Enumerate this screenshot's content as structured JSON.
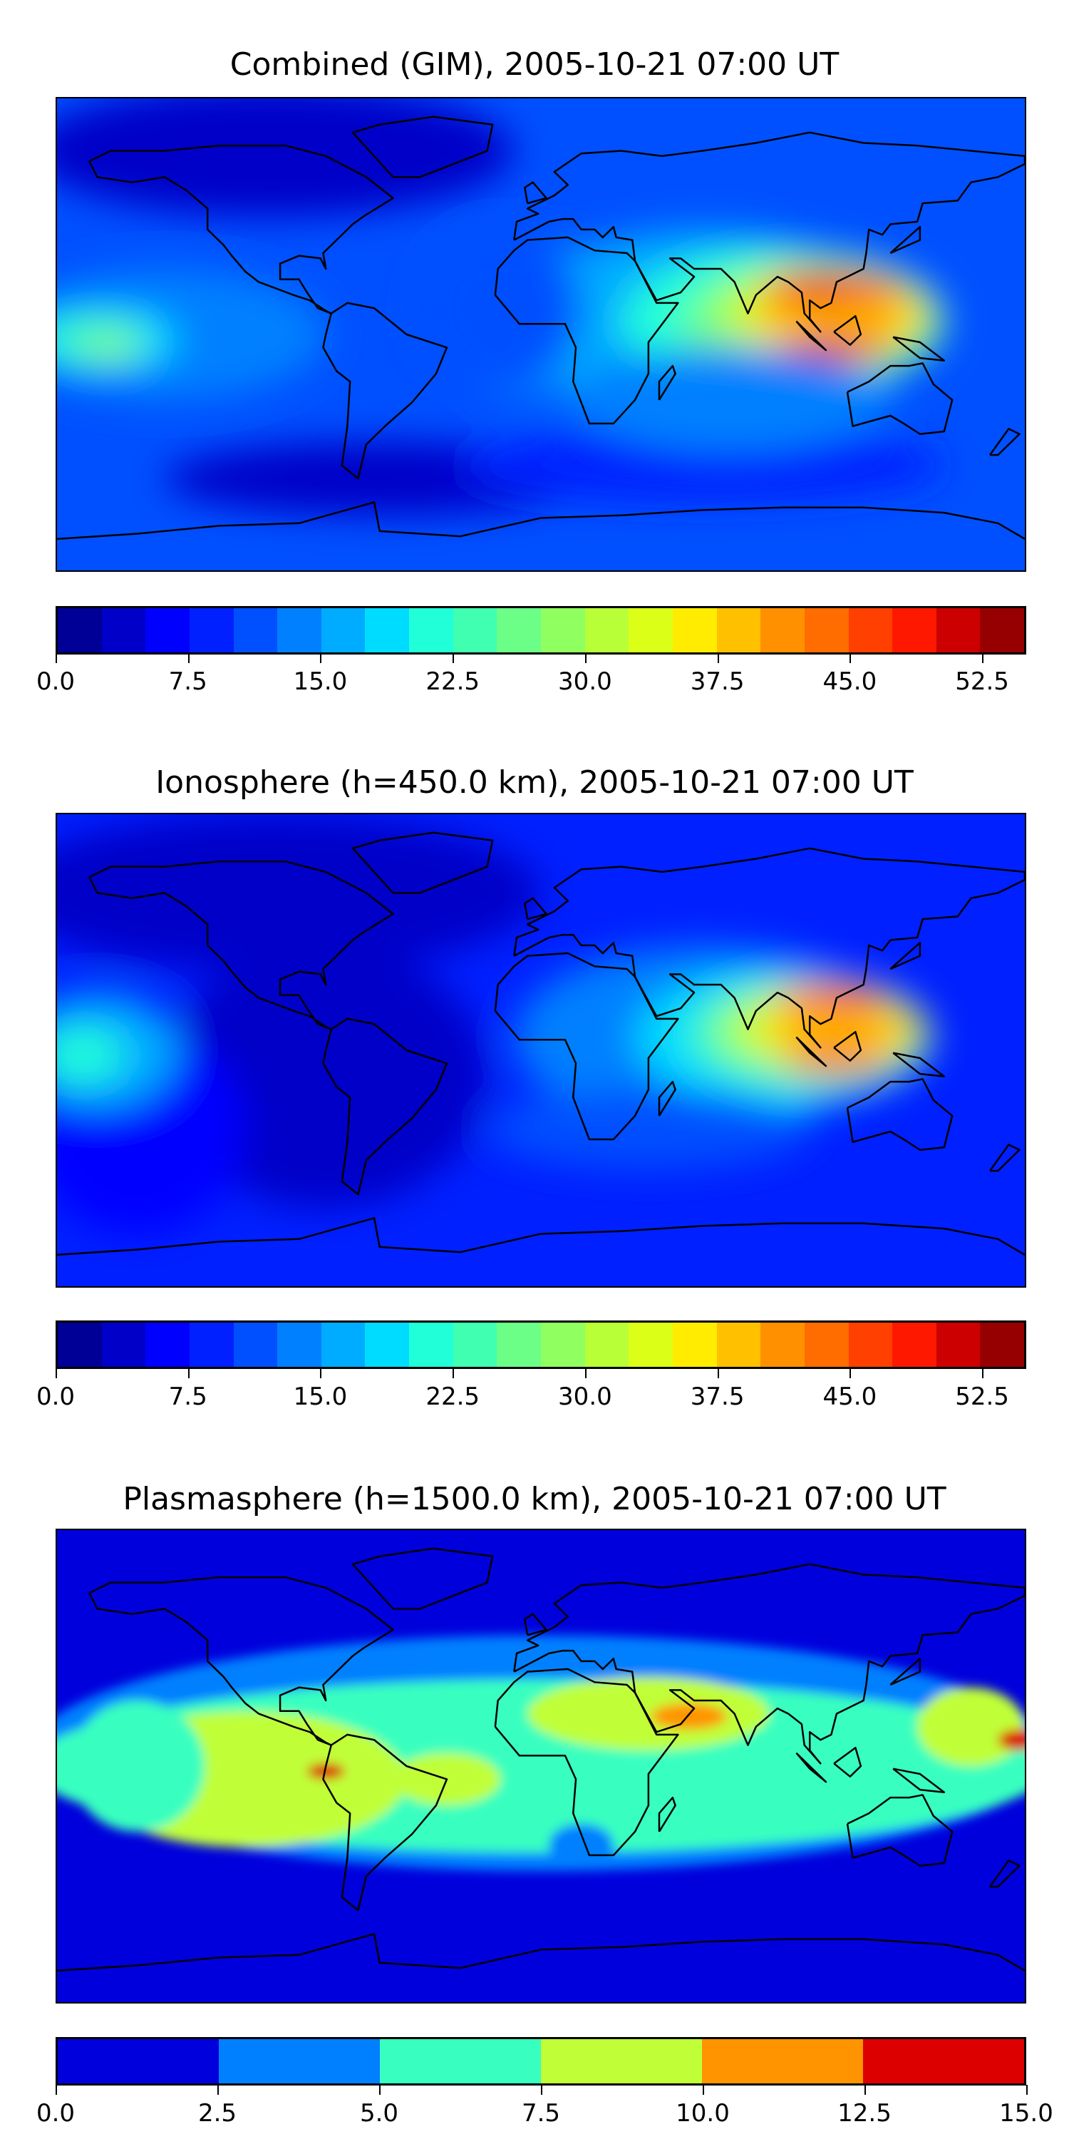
{
  "chart_data": [
    {
      "type": "heatmap",
      "title": "Combined (GIM), 2005-10-21 07:00 UT",
      "xlabel": "",
      "ylabel": "",
      "colorbar": {
        "range": [
          0,
          55
        ],
        "level_step": 2.5,
        "tick_labels": [
          "0.0",
          "7.5",
          "15.0",
          "22.5",
          "30.0",
          "37.5",
          "45.0",
          "52.5"
        ],
        "colors": [
          "#000096",
          "#0000c8",
          "#0000ff",
          "#0020ff",
          "#0050ff",
          "#0080ff",
          "#00acff",
          "#00dcff",
          "#20ffd8",
          "#40ffb0",
          "#6cff88",
          "#90ff60",
          "#b8ff38",
          "#dcff18",
          "#ffec00",
          "#ffc000",
          "#ff9000",
          "#ff6c00",
          "#ff4000",
          "#ff1800",
          "#cc0000",
          "#960000"
        ]
      },
      "features": "Equatorial anomaly peaks ~50 over SE Asia / Indonesia; ~25 secondary maximum over central Pacific; high latitudes ~2.5-7.5"
    },
    {
      "type": "heatmap",
      "title": "Ionosphere  (h=450.0 km), 2005-10-21 07:00 UT",
      "xlabel": "",
      "ylabel": "",
      "colorbar": {
        "range": [
          0,
          55
        ],
        "level_step": 2.5,
        "tick_labels": [
          "0.0",
          "7.5",
          "15.0",
          "22.5",
          "30.0",
          "37.5",
          "45.0",
          "52.5"
        ],
        "colors": [
          "#000096",
          "#0000c8",
          "#0000ff",
          "#0020ff",
          "#0050ff",
          "#0080ff",
          "#00acff",
          "#00dcff",
          "#20ffd8",
          "#40ffb0",
          "#6cff88",
          "#90ff60",
          "#b8ff38",
          "#dcff18",
          "#ffec00",
          "#ffc000",
          "#ff9000",
          "#ff6c00",
          "#ff4000",
          "#ff1800",
          "#cc0000",
          "#960000"
        ]
      },
      "features": "Equatorial anomaly peaks ~45 over SE Asia / Indonesia; Americas ~2.5-5"
    },
    {
      "type": "heatmap",
      "title": "Plasmasphere (h=1500.0 km), 2005-10-21 07:00 UT",
      "xlabel": "",
      "ylabel": "",
      "colorbar": {
        "range": [
          0,
          15
        ],
        "level_step": 2.5,
        "tick_labels": [
          "0.0",
          "2.5",
          "5.0",
          "7.5",
          "10.0",
          "12.5",
          "15.0"
        ],
        "colors": [
          "#0000dc",
          "#0080ff",
          "#38ffc0",
          "#c0ff38",
          "#ff9400",
          "#dc0000"
        ]
      },
      "features": "Low-latitude band 5-10 with local maxima 10-12.5 over Arabia, northern South America and central Pacific; high latitudes 0-2.5"
    }
  ]
}
